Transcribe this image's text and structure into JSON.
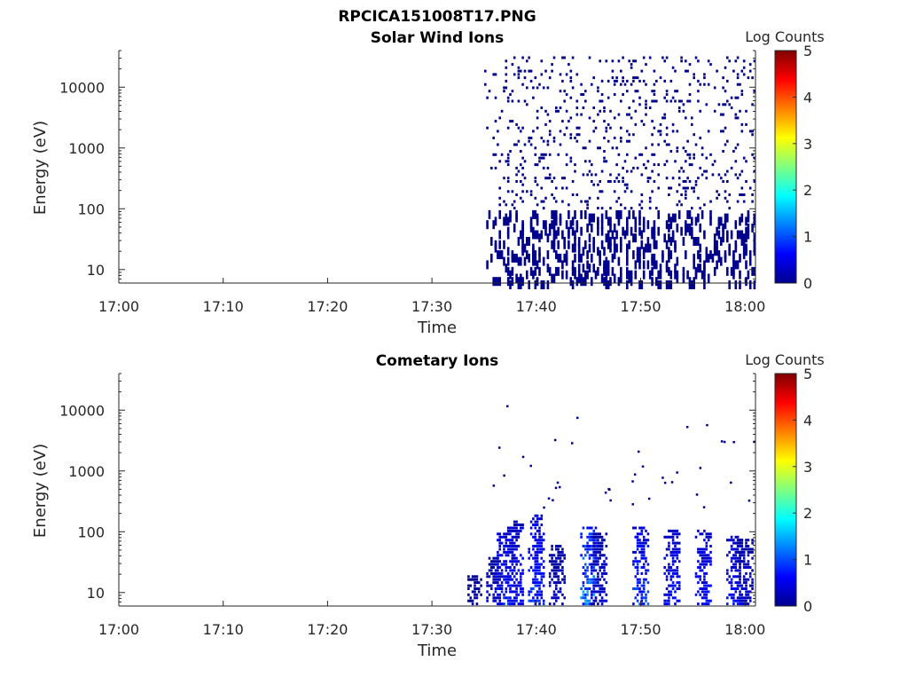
{
  "figure_title": "RPCICA151008T17.PNG",
  "chart_data": [
    {
      "type": "heatmap",
      "title": "Solar Wind Ions",
      "xlabel": "Time",
      "ylabel": "Energy (eV)",
      "y_scale": "log",
      "x_range": [
        "17:00",
        "18:01"
      ],
      "y_range": [
        6,
        40000
      ],
      "x_ticks": [
        "17:00",
        "17:10",
        "17:20",
        "17:30",
        "17:40",
        "17:50",
        "18:00"
      ],
      "y_ticks": [
        "10",
        "100",
        "1000",
        "10000"
      ],
      "colorbar": {
        "label": "Log Counts",
        "min": 0,
        "max": 5,
        "ticks": [
          "0",
          "1",
          "2",
          "3",
          "4",
          "5"
        ],
        "colormap": "jet"
      },
      "data_description": "Sparse counts (Log Counts ~0) scattered across 10 eV to ~30000 eV starting ~17:35 and continuing to 18:01; denser columns below 100 eV.",
      "activity_start": "17:35",
      "activity_end": "18:01",
      "typical_log_counts": 0.05
    },
    {
      "type": "heatmap",
      "title": "Cometary Ions",
      "xlabel": "Time",
      "ylabel": "Energy (eV)",
      "y_scale": "log",
      "x_range": [
        "17:00",
        "18:01"
      ],
      "y_range": [
        6,
        40000
      ],
      "x_ticks": [
        "17:00",
        "17:10",
        "17:20",
        "17:30",
        "17:40",
        "17:50",
        "18:00"
      ],
      "y_ticks": [
        "10",
        "100",
        "1000",
        "10000"
      ],
      "colorbar": {
        "label": "Log Counts",
        "min": 0,
        "max": 5,
        "ticks": [
          "0",
          "1",
          "2",
          "3",
          "4",
          "5"
        ],
        "colormap": "jet"
      },
      "data_description": "Low-energy cometary ion bursts (~6-150 eV) from ~17:33 to 18:01, peaking near 17:37, 17:40, 17:45, 17:50, 17:53, 17:56, 17:59 with Log Counts up to ~1.7; sparse high-energy points.",
      "bursts": [
        {
          "time": "17:34",
          "e_max": 20,
          "level": 0.2
        },
        {
          "time": "17:36",
          "e_max": 40,
          "level": 0.5
        },
        {
          "time": "17:37",
          "e_max": 100,
          "level": 1.0
        },
        {
          "time": "17:38",
          "e_max": 150,
          "level": 0.8
        },
        {
          "time": "17:40",
          "e_max": 200,
          "level": 1.1
        },
        {
          "time": "17:42",
          "e_max": 60,
          "level": 0.4
        },
        {
          "time": "17:45",
          "e_max": 120,
          "level": 1.7
        },
        {
          "time": "17:46",
          "e_max": 100,
          "level": 0.5
        },
        {
          "time": "17:50",
          "e_max": 120,
          "level": 1.2
        },
        {
          "time": "17:53",
          "e_max": 110,
          "level": 0.9
        },
        {
          "time": "17:56",
          "e_max": 110,
          "level": 0.9
        },
        {
          "time": "17:59",
          "e_max": 90,
          "level": 0.8
        },
        {
          "time": "18:00",
          "e_max": 80,
          "level": 0.5
        }
      ]
    }
  ]
}
